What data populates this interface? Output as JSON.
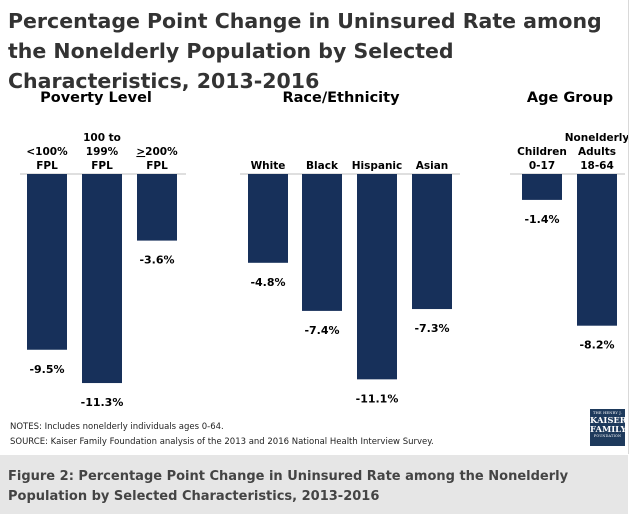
{
  "title": "Percentage Point Change in Uninsured Rate among the Nonelderly Population by Selected Characteristics, 2013-2016",
  "colors": {
    "bar": "#17305a",
    "baseline": "#bfbfbf"
  },
  "chart_data": {
    "type": "bar",
    "ylim": [
      -12,
      0
    ],
    "groups": [
      {
        "label": "Poverty Level",
        "categories": [
          "<100% FPL",
          "100 to 199% FPL",
          ">200% FPL"
        ],
        "values": [
          -9.5,
          -11.3,
          -3.6
        ]
      },
      {
        "label": "Race/Ethnicity",
        "categories": [
          "White",
          "Black",
          "Hispanic",
          "Asian"
        ],
        "values": [
          -4.8,
          -7.4,
          -11.1,
          -7.3
        ]
      },
      {
        "label": "Age Group",
        "categories": [
          "Children 0-17",
          "Nonelderly Adults 18-64"
        ],
        "values": [
          -1.4,
          -8.2
        ]
      }
    ],
    "bars": [
      {
        "group": 0,
        "label_lines": [
          "<100%",
          "FPL"
        ],
        "value": -9.5,
        "data_label": "-9.5%"
      },
      {
        "group": 0,
        "label_lines": [
          "100 to",
          "199%",
          "FPL"
        ],
        "value": -11.3,
        "data_label": "-11.3%"
      },
      {
        "group": 0,
        "label_lines": [
          ">200%",
          "FPL"
        ],
        "value": -3.6,
        "data_label": "-3.6%"
      },
      {
        "group": 1,
        "label_lines": [
          "White"
        ],
        "value": -4.8,
        "data_label": "-4.8%"
      },
      {
        "group": 1,
        "label_lines": [
          "Black"
        ],
        "value": -7.4,
        "data_label": "-7.4%"
      },
      {
        "group": 1,
        "label_lines": [
          "Hispanic"
        ],
        "value": -11.1,
        "data_label": "-11.1%"
      },
      {
        "group": 1,
        "label_lines": [
          "Asian"
        ],
        "value": -7.3,
        "data_label": "-7.3%"
      },
      {
        "group": 2,
        "label_lines": [
          "Children",
          "0-17"
        ],
        "value": -1.4,
        "data_label": "-1.4%"
      },
      {
        "group": 2,
        "label_lines": [
          "Nonelderly",
          "Adults",
          "18-64"
        ],
        "value": -8.2,
        "data_label": "-8.2%"
      }
    ]
  },
  "notes": {
    "line1": "NOTES: Includes nonelderly individuals ages 0-64.",
    "line2": "SOURCE: Kaiser Family Foundation analysis of the 2013 and 2016 National Health Interview Survey."
  },
  "logo": {
    "line1": "THE HENRY J.",
    "line2": "KAISER",
    "line3": "FAMILY",
    "line4": "FOUNDATION"
  },
  "caption": "Figure 2: Percentage Point Change in Uninsured Rate among the Nonelderly Population by Selected Characteristics, 2013-2016"
}
